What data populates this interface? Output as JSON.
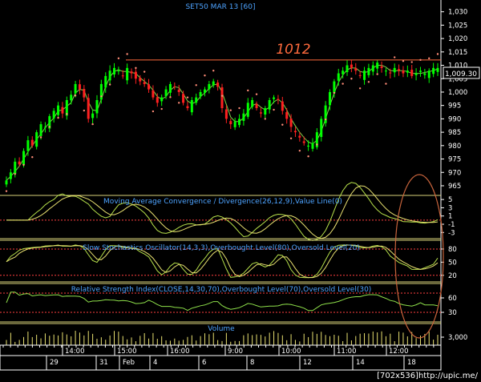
{
  "chart_data": [
    {
      "type": "candlestick",
      "title": "SET50 MAR 13  [60]",
      "annotation": "1012",
      "last_value": "1,009.30",
      "yticks": [
        "1,030",
        "1,025",
        "1,020",
        "1,015",
        "1,010",
        "1,005",
        "1,000",
        "995",
        "990",
        "985",
        "980",
        "975",
        "970",
        "965"
      ],
      "ylim": [
        962,
        1032
      ],
      "resistance_level": 1012,
      "close_series": [
        967,
        970,
        974,
        973,
        978,
        982,
        980,
        985,
        988,
        987,
        991,
        993,
        995,
        992,
        997,
        999,
        1003,
        1001,
        998,
        990,
        992,
        997,
        1003,
        1006,
        1008,
        1009,
        1008,
        1006,
        1009,
        1007,
        1005,
        1004,
        1003,
        1001,
        998,
        996,
        998,
        1001,
        1003,
        1002,
        1000,
        996,
        994,
        997,
        998,
        1000,
        1001,
        1003,
        1004,
        1002,
        994,
        990,
        988,
        989,
        990,
        992,
        996,
        997,
        994,
        992,
        994,
        997,
        998,
        997,
        993,
        990,
        987,
        985,
        983,
        981,
        980,
        981,
        985,
        990,
        995,
        1000,
        1004,
        1007,
        1008,
        1010,
        1009,
        1008,
        1006,
        1008,
        1009,
        1010,
        1011,
        1009,
        1008,
        1007,
        1009,
        1008,
        1007,
        1008,
        1006,
        1007,
        1008,
        1007,
        1008,
        1009,
        1009
      ],
      "ma_fast_color": "#ffffaa",
      "ma_mid_color": "#cc1010",
      "ma_slow_color": "#e6e6e6",
      "ma_long_color": "#33ccdd",
      "psar_color": "#ff8c78"
    },
    {
      "type": "line",
      "title": "Moving Average Convergence / Divergence(26,12,9),Value Line(0)",
      "yticks": [
        "5",
        "3",
        "1",
        "-1",
        "-3"
      ],
      "ylim": [
        -4.5,
        6
      ]
    },
    {
      "type": "line",
      "title": "Slow Stochastics Oscillator(14,3,3),Overbought Level(80),Oversold Level(20)",
      "yticks": [
        "80",
        "50",
        "20"
      ],
      "ylim": [
        5,
        100
      ]
    },
    {
      "type": "line",
      "title": "Relative Strength Index(CLOSE,14,30,70),Overbought Level(70),Oversold Level(30)",
      "yticks": [
        "60",
        "30"
      ],
      "ylim": [
        10,
        90
      ]
    },
    {
      "type": "bar",
      "title": "Volume",
      "yticks": [
        "3,000"
      ]
    }
  ],
  "time_axis": {
    "top": [
      "14:00",
      "15:00",
      "16:00",
      "9:00",
      "10:00",
      "11:00",
      "12:00"
    ],
    "bottom": [
      "29",
      "31",
      "Feb",
      "4",
      "6",
      "8",
      "12",
      "14",
      "18"
    ]
  },
  "watermark": "[702x536]http://upic.me/",
  "colors": {
    "up_candle": "#00ff00",
    "down_candle": "#ff2020",
    "panel_line": "#d8d27a",
    "axis_text": "#ffffff",
    "title_text": "#4da3ff",
    "annotation_text": "#ff6a3d",
    "circle": "#c8643c"
  }
}
